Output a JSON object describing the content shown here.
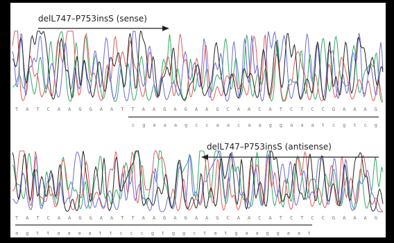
{
  "sense": {
    "label": "delL747–P753insS (sense)",
    "reference": "TATCAAGGAATTAAGAGAAGCAACATCTCCGAAAG",
    "read": "cgaaagccaacaaggaaatcgtcg"
  },
  "antisense": {
    "label": "delL747–P753insS (antisense)",
    "reference": "TATCAAGGAATTAAGAGAAGCAACATCTCCGAAAG",
    "read": "agttaaaattcccgtggctatgaaggaat"
  }
}
